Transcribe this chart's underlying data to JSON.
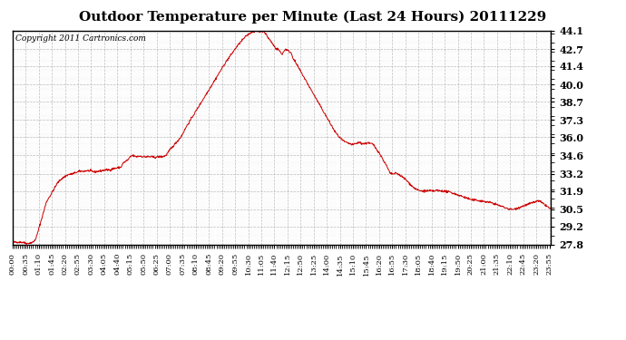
{
  "title": "Outdoor Temperature per Minute (Last 24 Hours) 20111229",
  "copyright": "Copyright 2011 Cartronics.com",
  "line_color": "#cc0000",
  "background_color": "#ffffff",
  "grid_color": "#aaaaaa",
  "yticks": [
    27.8,
    29.2,
    30.5,
    31.9,
    33.2,
    34.6,
    36.0,
    37.3,
    38.7,
    40.0,
    41.4,
    42.7,
    44.1
  ],
  "ymin": 27.8,
  "ymax": 44.1,
  "xtick_labels": [
    "00:00",
    "00:35",
    "01:10",
    "01:45",
    "02:20",
    "02:55",
    "03:30",
    "04:05",
    "04:40",
    "05:15",
    "05:50",
    "06:25",
    "07:00",
    "07:35",
    "08:10",
    "08:45",
    "09:20",
    "09:55",
    "10:30",
    "11:05",
    "11:40",
    "12:15",
    "12:50",
    "13:25",
    "14:00",
    "14:35",
    "15:10",
    "15:45",
    "16:20",
    "16:55",
    "17:30",
    "18:05",
    "18:40",
    "19:15",
    "19:50",
    "20:25",
    "21:00",
    "21:35",
    "22:10",
    "22:45",
    "23:20",
    "23:55"
  ],
  "key_points": [
    [
      0,
      28.0
    ],
    [
      25,
      28.0
    ],
    [
      40,
      27.9
    ],
    [
      55,
      28.0
    ],
    [
      60,
      28.15
    ],
    [
      65,
      28.5
    ],
    [
      70,
      29.0
    ],
    [
      75,
      29.5
    ],
    [
      80,
      30.0
    ],
    [
      85,
      30.5
    ],
    [
      90,
      31.0
    ],
    [
      95,
      31.3
    ],
    [
      100,
      31.5
    ],
    [
      110,
      32.0
    ],
    [
      120,
      32.5
    ],
    [
      130,
      32.8
    ],
    [
      140,
      33.0
    ],
    [
      150,
      33.15
    ],
    [
      160,
      33.2
    ],
    [
      170,
      33.3
    ],
    [
      180,
      33.4
    ],
    [
      190,
      33.4
    ],
    [
      200,
      33.45
    ],
    [
      210,
      33.4
    ],
    [
      220,
      33.35
    ],
    [
      230,
      33.4
    ],
    [
      240,
      33.45
    ],
    [
      250,
      33.5
    ],
    [
      260,
      33.5
    ],
    [
      270,
      33.6
    ],
    [
      280,
      33.65
    ],
    [
      290,
      33.7
    ],
    [
      295,
      34.0
    ],
    [
      300,
      34.1
    ],
    [
      310,
      34.3
    ],
    [
      315,
      34.5
    ],
    [
      320,
      34.6
    ],
    [
      325,
      34.55
    ],
    [
      330,
      34.5
    ],
    [
      340,
      34.55
    ],
    [
      350,
      34.5
    ],
    [
      360,
      34.5
    ],
    [
      370,
      34.5
    ],
    [
      380,
      34.45
    ],
    [
      390,
      34.5
    ],
    [
      400,
      34.5
    ],
    [
      410,
      34.6
    ],
    [
      420,
      35.0
    ],
    [
      435,
      35.5
    ],
    [
      450,
      36.0
    ],
    [
      465,
      36.8
    ],
    [
      480,
      37.5
    ],
    [
      495,
      38.2
    ],
    [
      510,
      38.9
    ],
    [
      525,
      39.6
    ],
    [
      540,
      40.3
    ],
    [
      555,
      41.0
    ],
    [
      570,
      41.7
    ],
    [
      585,
      42.3
    ],
    [
      600,
      42.9
    ],
    [
      615,
      43.4
    ],
    [
      625,
      43.7
    ],
    [
      635,
      43.9
    ],
    [
      640,
      44.0
    ],
    [
      645,
      44.05
    ],
    [
      650,
      44.1
    ],
    [
      655,
      44.05
    ],
    [
      660,
      44.0
    ],
    [
      665,
      44.05
    ],
    [
      670,
      44.1
    ],
    [
      673,
      44.08
    ],
    [
      675,
      43.9
    ],
    [
      680,
      43.7
    ],
    [
      685,
      43.5
    ],
    [
      690,
      43.3
    ],
    [
      695,
      43.1
    ],
    [
      700,
      42.9
    ],
    [
      705,
      42.7
    ],
    [
      710,
      42.7
    ],
    [
      715,
      42.5
    ],
    [
      720,
      42.3
    ],
    [
      725,
      42.5
    ],
    [
      730,
      42.7
    ],
    [
      735,
      42.6
    ],
    [
      740,
      42.5
    ],
    [
      745,
      42.4
    ],
    [
      750,
      42.0
    ],
    [
      760,
      41.5
    ],
    [
      770,
      41.0
    ],
    [
      780,
      40.5
    ],
    [
      790,
      40.0
    ],
    [
      800,
      39.5
    ],
    [
      810,
      39.0
    ],
    [
      820,
      38.5
    ],
    [
      830,
      38.0
    ],
    [
      840,
      37.5
    ],
    [
      850,
      37.0
    ],
    [
      860,
      36.5
    ],
    [
      870,
      36.1
    ],
    [
      880,
      35.8
    ],
    [
      890,
      35.6
    ],
    [
      900,
      35.5
    ],
    [
      910,
      35.4
    ],
    [
      915,
      35.5
    ],
    [
      920,
      35.5
    ],
    [
      925,
      35.6
    ],
    [
      930,
      35.55
    ],
    [
      935,
      35.5
    ],
    [
      940,
      35.5
    ],
    [
      945,
      35.5
    ],
    [
      950,
      35.6
    ],
    [
      955,
      35.5
    ],
    [
      960,
      35.5
    ],
    [
      965,
      35.4
    ],
    [
      970,
      35.2
    ],
    [
      980,
      34.8
    ],
    [
      990,
      34.3
    ],
    [
      1000,
      33.8
    ],
    [
      1005,
      33.5
    ],
    [
      1010,
      33.2
    ],
    [
      1015,
      33.2
    ],
    [
      1020,
      33.2
    ],
    [
      1025,
      33.25
    ],
    [
      1030,
      33.2
    ],
    [
      1035,
      33.1
    ],
    [
      1040,
      33.0
    ],
    [
      1050,
      32.8
    ],
    [
      1060,
      32.5
    ],
    [
      1070,
      32.2
    ],
    [
      1080,
      32.0
    ],
    [
      1090,
      31.9
    ],
    [
      1100,
      31.9
    ],
    [
      1110,
      31.9
    ],
    [
      1120,
      31.9
    ],
    [
      1130,
      31.9
    ],
    [
      1135,
      31.95
    ],
    [
      1140,
      31.9
    ],
    [
      1145,
      31.9
    ],
    [
      1150,
      31.9
    ],
    [
      1160,
      31.85
    ],
    [
      1170,
      31.8
    ],
    [
      1180,
      31.7
    ],
    [
      1190,
      31.6
    ],
    [
      1200,
      31.5
    ],
    [
      1210,
      31.4
    ],
    [
      1220,
      31.3
    ],
    [
      1230,
      31.2
    ],
    [
      1240,
      31.2
    ],
    [
      1250,
      31.15
    ],
    [
      1260,
      31.1
    ],
    [
      1270,
      31.05
    ],
    [
      1280,
      31.0
    ],
    [
      1290,
      30.9
    ],
    [
      1300,
      30.8
    ],
    [
      1310,
      30.7
    ],
    [
      1320,
      30.6
    ],
    [
      1330,
      30.5
    ],
    [
      1340,
      30.5
    ],
    [
      1350,
      30.6
    ],
    [
      1360,
      30.7
    ],
    [
      1370,
      30.8
    ],
    [
      1380,
      30.9
    ],
    [
      1390,
      31.0
    ],
    [
      1400,
      31.1
    ],
    [
      1405,
      31.15
    ],
    [
      1410,
      31.1
    ],
    [
      1415,
      31.0
    ],
    [
      1420,
      30.9
    ],
    [
      1425,
      30.8
    ],
    [
      1430,
      30.7
    ],
    [
      1435,
      30.6
    ],
    [
      1439,
      30.5
    ]
  ]
}
